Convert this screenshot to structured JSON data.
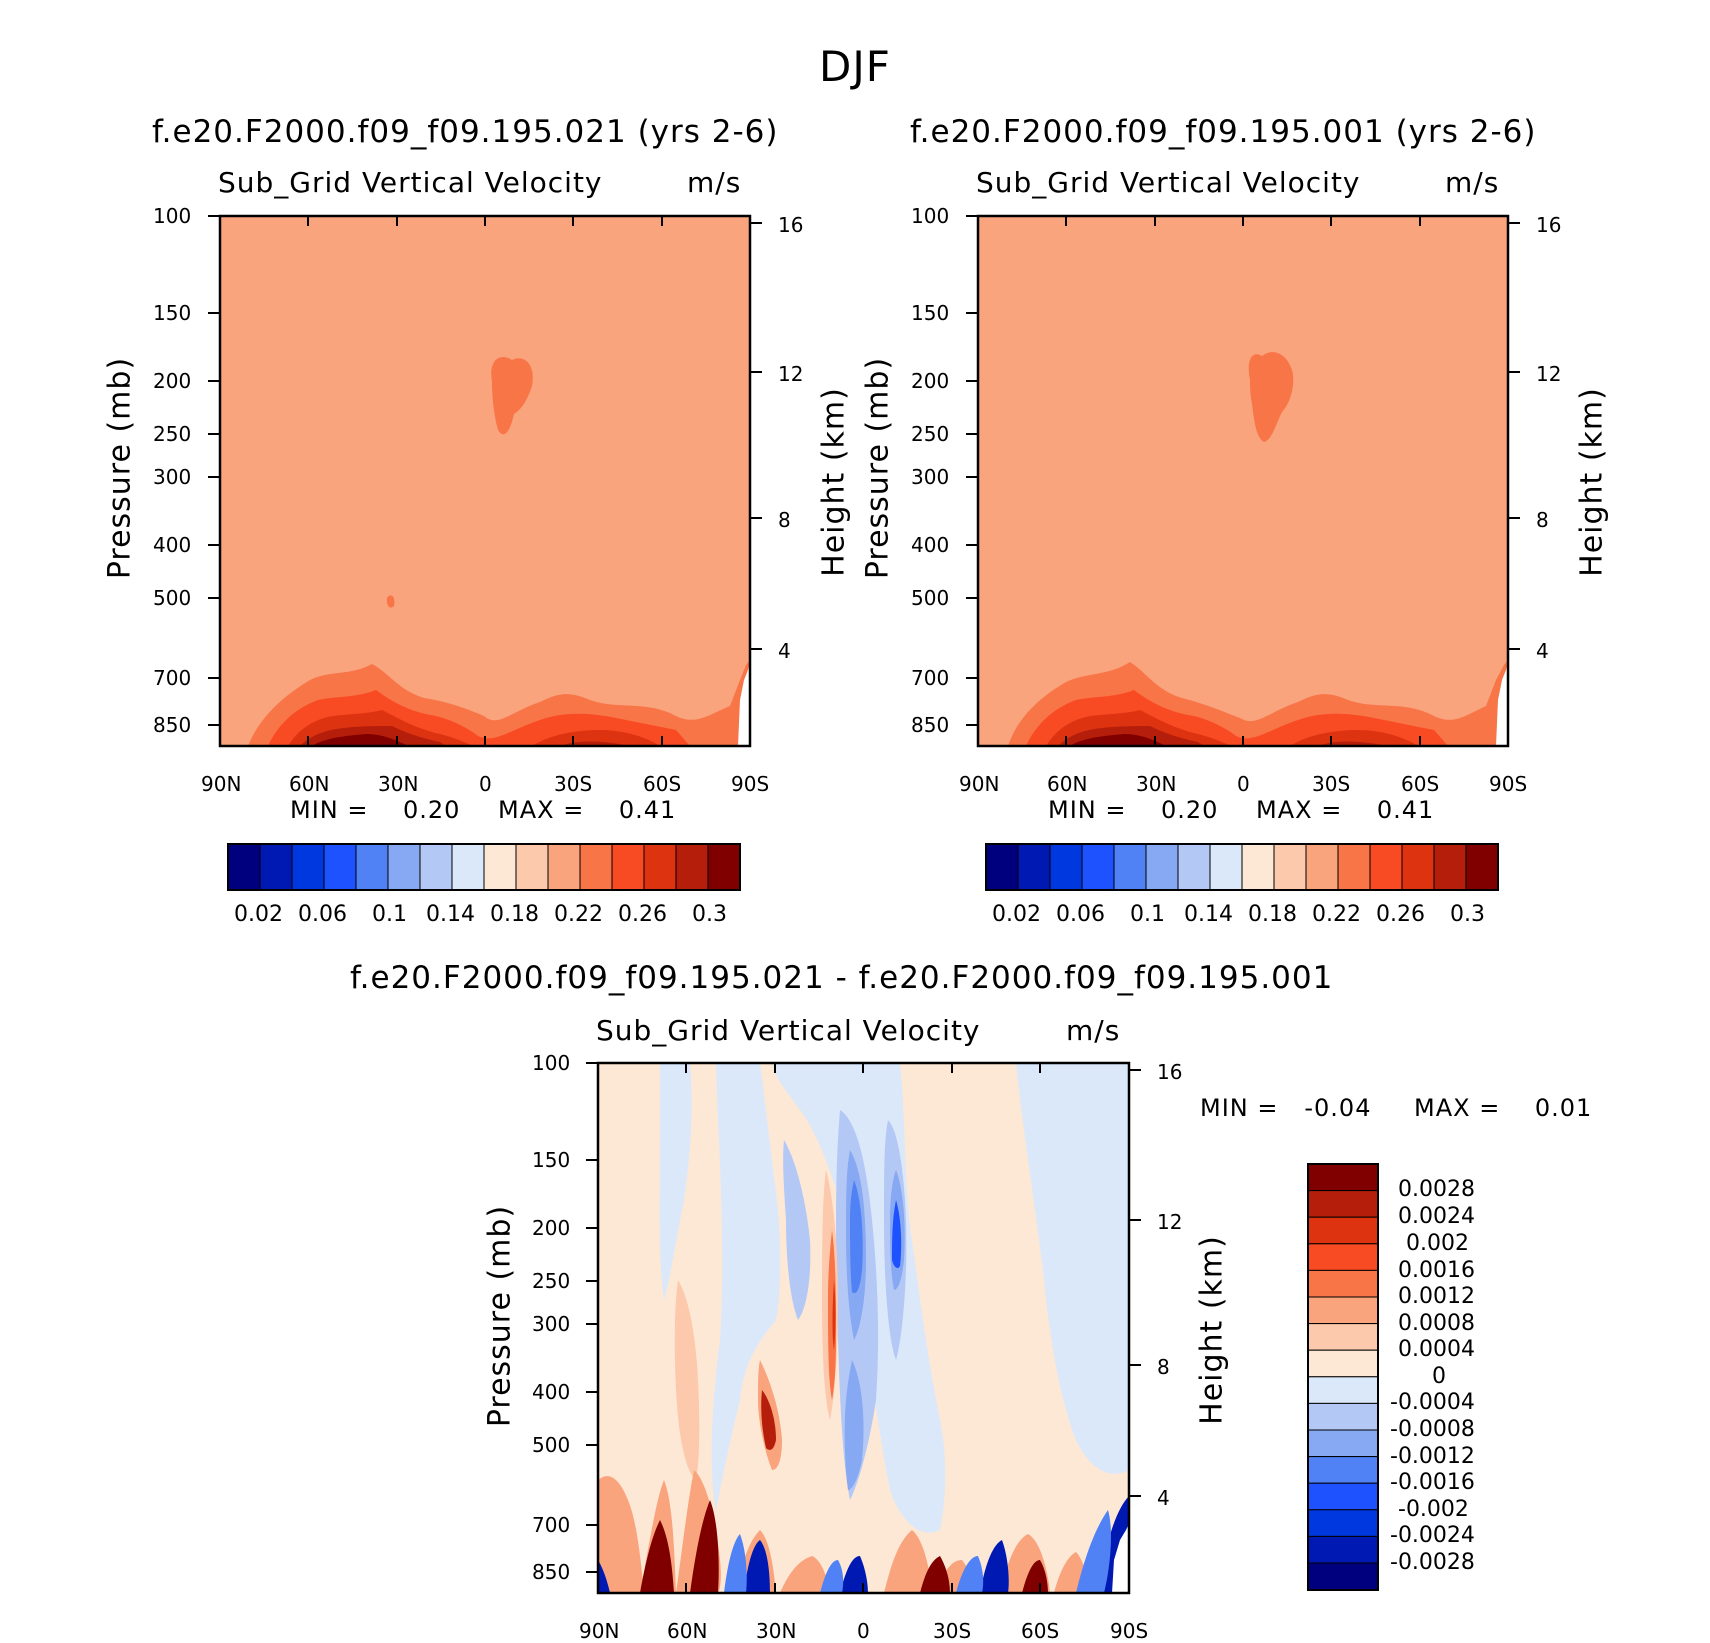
{
  "figure": {
    "title": "DJF"
  },
  "panels": [
    {
      "id": "top-left",
      "title": "f.e20.F2000.f09_f09.195.021 (yrs 2-6)",
      "variable": "Sub_Grid Vertical Velocity",
      "units": "m/s",
      "min_text": "MIN =    0.20",
      "max_text": "MAX =    0.41",
      "left_axis_label": "Pressure (mb)",
      "right_axis_label": "Height (km)"
    },
    {
      "id": "top-right",
      "title": "f.e20.F2000.f09_f09.195.001 (yrs 2-6)",
      "variable": "Sub_Grid Vertical Velocity",
      "units": "m/s",
      "min_text": "MIN =    0.20",
      "max_text": "MAX =    0.41",
      "left_axis_label": "Pressure (mb)",
      "right_axis_label": "Height (km)"
    },
    {
      "id": "bottom",
      "title": "f.e20.F2000.f09_f09.195.021 - f.e20.F2000.f09_f09.195.001",
      "variable": "Sub_Grid Vertical Velocity",
      "units": "m/s",
      "min_text": "MIN =   -0.04",
      "max_text": "MAX =    0.01",
      "left_axis_label": "Pressure (mb)",
      "right_axis_label": "Height (km)"
    }
  ],
  "chart_data": [
    {
      "type": "heatmap",
      "title": "f.e20.F2000.f09_f09.195.021 (yrs 2-6)",
      "subtitle": "Sub_Grid Vertical Velocity",
      "units": "m/s",
      "x_ticks": [
        "90N",
        "60N",
        "30N",
        "0",
        "30S",
        "60S",
        "90S"
      ],
      "y_ticks_pressure": [
        "100",
        "150",
        "200",
        "250",
        "300",
        "400",
        "500",
        "700",
        "850"
      ],
      "y_ticks_height_km": [
        "16",
        "12",
        "8",
        "4"
      ],
      "ylabel": "Pressure (mb)",
      "ylabel_right": "Height (km)",
      "min": 0.2,
      "max": 0.41,
      "colorbar_labels": [
        "0.02",
        "0.06",
        "0.1",
        "0.14",
        "0.18",
        "0.22",
        "0.26",
        "0.3"
      ],
      "colorbar_colors": [
        "#00007f",
        "#0019b3",
        "#0038e0",
        "#1e52ff",
        "#5082f5",
        "#87a8f2",
        "#b4c8f5",
        "#dbe8fa",
        "#fde8d6",
        "#fdc9ad",
        "#f9a47d",
        "#f87548",
        "#f84b24",
        "#de3311",
        "#b61e0c",
        "#800000"
      ],
      "field_description_dominant_level": "0.22"
    },
    {
      "type": "heatmap",
      "title": "f.e20.F2000.f09_f09.195.001 (yrs 2-6)",
      "subtitle": "Sub_Grid Vertical Velocity",
      "units": "m/s",
      "x_ticks": [
        "90N",
        "60N",
        "30N",
        "0",
        "30S",
        "60S",
        "90S"
      ],
      "y_ticks_pressure": [
        "100",
        "150",
        "200",
        "250",
        "300",
        "400",
        "500",
        "700",
        "850"
      ],
      "y_ticks_height_km": [
        "16",
        "12",
        "8",
        "4"
      ],
      "ylabel": "Pressure (mb)",
      "ylabel_right": "Height (km)",
      "min": 0.2,
      "max": 0.41,
      "colorbar_labels": [
        "0.02",
        "0.06",
        "0.1",
        "0.14",
        "0.18",
        "0.22",
        "0.26",
        "0.3"
      ],
      "colorbar_colors": [
        "#00007f",
        "#0019b3",
        "#0038e0",
        "#1e52ff",
        "#5082f5",
        "#87a8f2",
        "#b4c8f5",
        "#dbe8fa",
        "#fde8d6",
        "#fdc9ad",
        "#f9a47d",
        "#f87548",
        "#f84b24",
        "#de3311",
        "#b61e0c",
        "#800000"
      ],
      "field_description_dominant_level": "0.22"
    },
    {
      "type": "heatmap",
      "title": "f.e20.F2000.f09_f09.195.021 - f.e20.F2000.f09_f09.195.001",
      "subtitle": "Sub_Grid Vertical Velocity",
      "units": "m/s",
      "x_ticks": [
        "90N",
        "60N",
        "30N",
        "0",
        "30S",
        "60S",
        "90S"
      ],
      "y_ticks_pressure": [
        "100",
        "150",
        "200",
        "250",
        "300",
        "400",
        "500",
        "700",
        "850"
      ],
      "y_ticks_height_km": [
        "16",
        "12",
        "8",
        "4"
      ],
      "ylabel": "Pressure (mb)",
      "ylabel_right": "Height (km)",
      "min": -0.04,
      "max": 0.01,
      "colorbar_labels": [
        "0.0028",
        "0.0024",
        "0.002",
        "0.0016",
        "0.0012",
        "0.0008",
        "0.0004",
        "0",
        "-0.0004",
        "-0.0008",
        "-0.0012",
        "-0.0016",
        "-0.002",
        "-0.0024",
        "-0.0028"
      ],
      "colorbar_colors": [
        "#800000",
        "#b61e0c",
        "#de3311",
        "#f84b24",
        "#f87548",
        "#f9a47d",
        "#fdc9ad",
        "#fde8d6",
        "#dbe8fa",
        "#b4c8f5",
        "#87a8f2",
        "#5082f5",
        "#1e52ff",
        "#0038e0",
        "#0019b3",
        "#00007f"
      ]
    }
  ]
}
